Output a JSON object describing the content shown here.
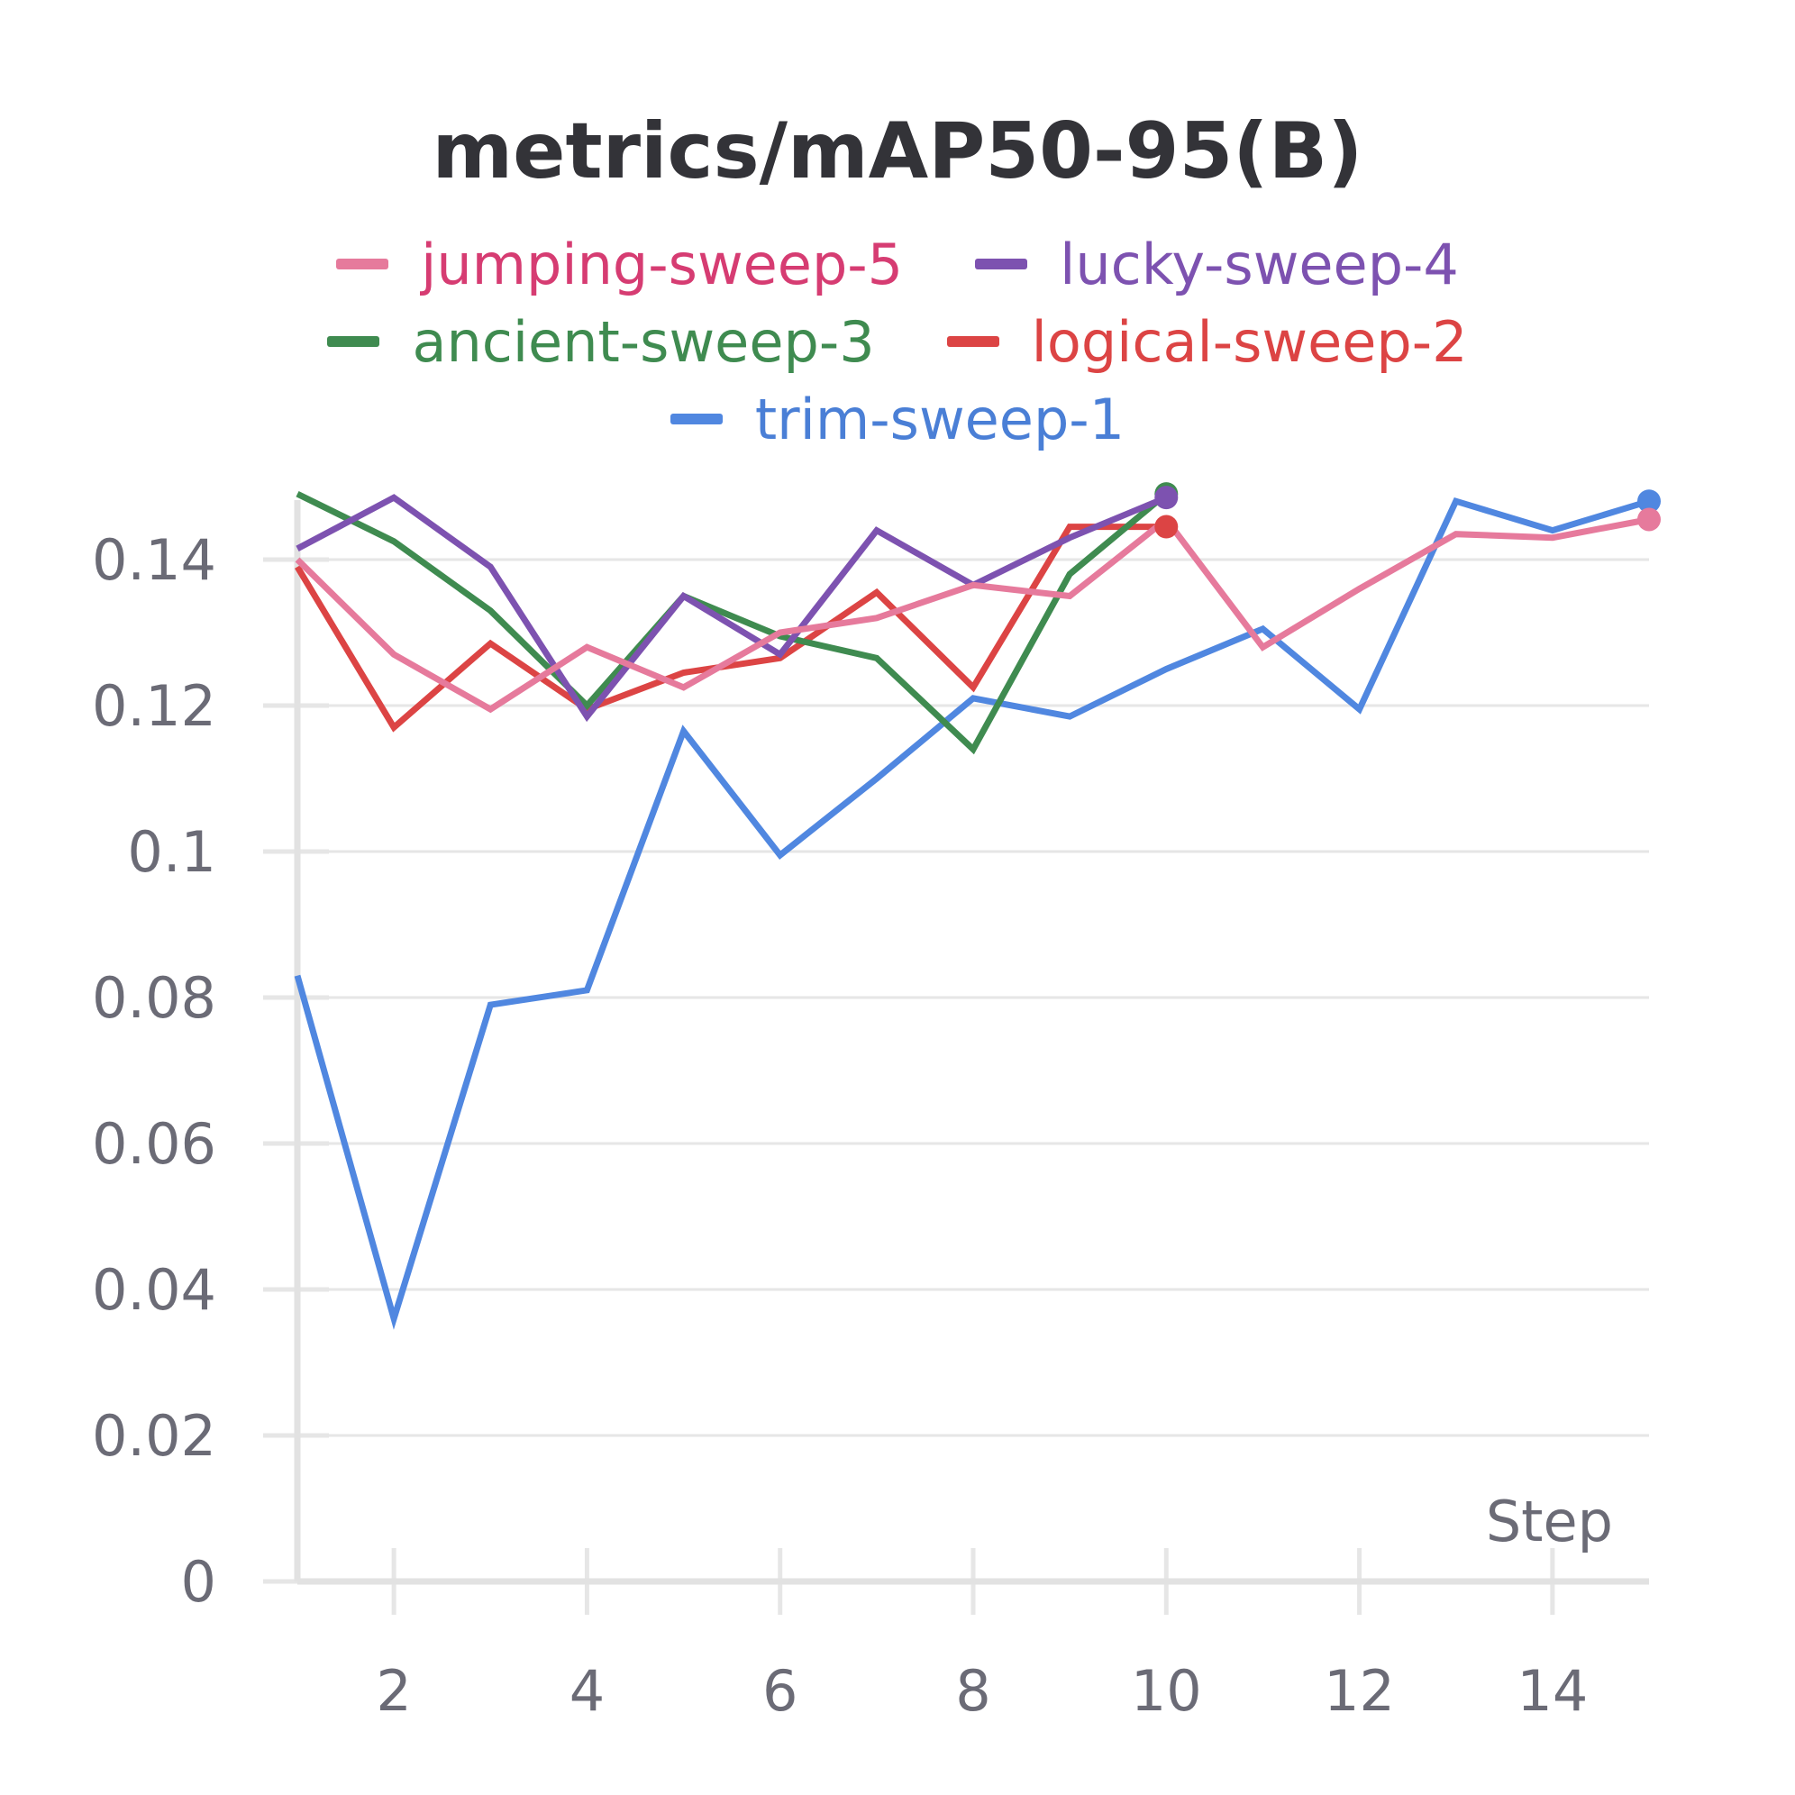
{
  "chart_data": {
    "type": "line",
    "title": "metrics/mAP50-95(B)",
    "xlabel": "Step",
    "ylabel": "",
    "xlim": [
      1,
      15
    ],
    "ylim": [
      0,
      0.15
    ],
    "x_ticks": [
      2,
      4,
      6,
      8,
      10,
      12,
      14
    ],
    "y_ticks": [
      0,
      0.02,
      0.04,
      0.06,
      0.08,
      0.1,
      0.12,
      0.14
    ],
    "y_tick_labels": [
      "0",
      "0.02",
      "0.04",
      "0.06",
      "0.08",
      "0.1",
      "0.12",
      "0.14"
    ],
    "grid": "horizontal",
    "legend_position": "top",
    "series": [
      {
        "name": "jumping-sweep-5",
        "color": "#e67a9c",
        "text_color": "#d63c72",
        "x": [
          1,
          2,
          3,
          4,
          5,
          6,
          7,
          8,
          9,
          10,
          11,
          12,
          13,
          14,
          15
        ],
        "y": [
          0.14,
          0.127,
          0.1195,
          0.128,
          0.1225,
          0.13,
          0.132,
          0.1365,
          0.135,
          0.1455,
          0.128,
          0.136,
          0.1435,
          0.143,
          0.1455
        ]
      },
      {
        "name": "lucky-sweep-4",
        "color": "#7d52b0",
        "text_color": "#7d52b0",
        "x": [
          1,
          2,
          3,
          4,
          5,
          6,
          7,
          8,
          9,
          10
        ],
        "y": [
          0.1415,
          0.1485,
          0.139,
          0.1185,
          0.135,
          0.127,
          0.144,
          0.1365,
          0.143,
          0.1485
        ]
      },
      {
        "name": "ancient-sweep-3",
        "color": "#3f8b50",
        "text_color": "#3f8b50",
        "x": [
          1,
          2,
          3,
          4,
          5,
          6,
          7,
          8,
          9,
          10
        ],
        "y": [
          0.149,
          0.1425,
          0.133,
          0.12,
          0.135,
          0.1295,
          0.1265,
          0.114,
          0.138,
          0.149
        ]
      },
      {
        "name": "logical-sweep-2",
        "color": "#dc4444",
        "text_color": "#dc4444",
        "x": [
          1,
          2,
          3,
          4,
          5,
          6,
          7,
          8,
          9,
          10
        ],
        "y": [
          0.139,
          0.117,
          0.1285,
          0.1195,
          0.1245,
          0.1265,
          0.1355,
          0.1225,
          0.1445,
          0.1445
        ]
      },
      {
        "name": "trim-sweep-1",
        "color": "#5087e0",
        "text_color": "#4a7fd6",
        "x": [
          1,
          2,
          3,
          4,
          5,
          6,
          7,
          8,
          9,
          10,
          11,
          12,
          13,
          14,
          15
        ],
        "y": [
          0.083,
          0.036,
          0.079,
          0.081,
          0.1165,
          0.0995,
          0.11,
          0.121,
          0.1185,
          0.125,
          0.1305,
          0.1195,
          0.148,
          0.144,
          0.148
        ]
      }
    ]
  }
}
